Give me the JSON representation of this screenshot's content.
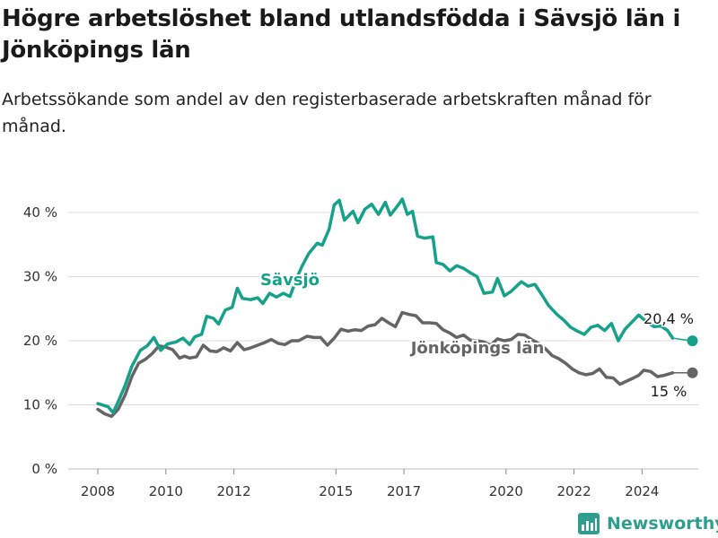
{
  "header": {
    "title": "Högre arbetslöshet bland utlandsfödda i Sävsjö län i Jönköpings län",
    "subtitle": "Arbetssökande som andel av den registerbaserade arbetskraften månad för månad."
  },
  "brand": {
    "name": "Newsworthy",
    "color": "#2f9e8f",
    "icon": "bar-chart-logo-icon"
  },
  "chart_data": {
    "type": "line",
    "title": "Högre arbetslöshet bland utlandsfödda i Sävsjö län i Jönköpings län",
    "subtitle": "Arbetssökande som andel av den registerbaserade arbetskraften månad för månad.",
    "x_unit": "year",
    "xlim": [
      2007.5,
      2026.3
    ],
    "ylim": [
      0,
      45
    ],
    "yticks": [
      0,
      10,
      20,
      30,
      40
    ],
    "ytick_labels": [
      "0 %",
      "10 %",
      "20 %",
      "30 %",
      "40 %"
    ],
    "xticks": [
      2008,
      2010,
      2012,
      2015,
      2017,
      2020,
      2022,
      2024
    ],
    "xtick_labels": [
      "2008",
      "2010",
      "2012",
      "2015",
      "2017",
      "2020",
      "2022",
      "2024"
    ],
    "grid": true,
    "series": [
      {
        "name": "Sävsjö",
        "color": "#16a18b",
        "end_label": "20,4 %",
        "points": [
          [
            2008.0,
            10.2
          ],
          [
            2008.3,
            9.7
          ],
          [
            2008.45,
            8.8
          ],
          [
            2008.6,
            10.5
          ],
          [
            2008.8,
            13.0
          ],
          [
            2009.0,
            16.0
          ],
          [
            2009.25,
            18.5
          ],
          [
            2009.45,
            19.2
          ],
          [
            2009.65,
            20.5
          ],
          [
            2009.85,
            18.5
          ],
          [
            2010.05,
            19.5
          ],
          [
            2010.3,
            19.8
          ],
          [
            2010.5,
            20.4
          ],
          [
            2010.7,
            19.4
          ],
          [
            2010.85,
            20.6
          ],
          [
            2011.05,
            21.0
          ],
          [
            2011.2,
            23.8
          ],
          [
            2011.4,
            23.5
          ],
          [
            2011.55,
            22.6
          ],
          [
            2011.75,
            24.8
          ],
          [
            2011.95,
            25.2
          ],
          [
            2012.1,
            28.2
          ],
          [
            2012.25,
            26.6
          ],
          [
            2012.5,
            26.4
          ],
          [
            2012.7,
            26.7
          ],
          [
            2012.85,
            25.8
          ],
          [
            2013.05,
            27.4
          ],
          [
            2013.25,
            26.8
          ],
          [
            2013.45,
            27.4
          ],
          [
            2013.65,
            26.9
          ],
          [
            2013.85,
            29.8
          ],
          [
            2014.0,
            31.6
          ],
          [
            2014.2,
            33.6
          ],
          [
            2014.45,
            35.2
          ],
          [
            2014.6,
            34.9
          ],
          [
            2014.8,
            37.4
          ],
          [
            2014.95,
            41.2
          ],
          [
            2015.1,
            41.9
          ],
          [
            2015.25,
            38.8
          ],
          [
            2015.5,
            40.2
          ],
          [
            2015.65,
            38.4
          ],
          [
            2015.85,
            40.5
          ],
          [
            2016.05,
            41.3
          ],
          [
            2016.25,
            39.7
          ],
          [
            2016.45,
            41.6
          ],
          [
            2016.6,
            39.6
          ],
          [
            2016.85,
            41.3
          ],
          [
            2016.95,
            42.1
          ],
          [
            2017.1,
            39.7
          ],
          [
            2017.25,
            40.2
          ],
          [
            2017.4,
            36.3
          ],
          [
            2017.6,
            36.0
          ],
          [
            2017.85,
            36.2
          ],
          [
            2017.95,
            32.2
          ],
          [
            2018.15,
            31.9
          ],
          [
            2018.35,
            30.9
          ],
          [
            2018.55,
            31.7
          ],
          [
            2018.75,
            31.3
          ],
          [
            2018.95,
            30.6
          ],
          [
            2019.15,
            30.0
          ],
          [
            2019.35,
            27.4
          ],
          [
            2019.6,
            27.6
          ],
          [
            2019.75,
            29.7
          ],
          [
            2019.95,
            27.0
          ],
          [
            2020.15,
            27.7
          ],
          [
            2020.45,
            29.2
          ],
          [
            2020.65,
            28.5
          ],
          [
            2020.85,
            28.8
          ],
          [
            2021.05,
            27.2
          ],
          [
            2021.25,
            25.5
          ],
          [
            2021.5,
            24.1
          ],
          [
            2021.7,
            23.2
          ],
          [
            2021.9,
            22.1
          ],
          [
            2022.1,
            21.5
          ],
          [
            2022.3,
            21.0
          ],
          [
            2022.5,
            22.1
          ],
          [
            2022.7,
            22.4
          ],
          [
            2022.9,
            21.6
          ],
          [
            2023.1,
            22.7
          ],
          [
            2023.3,
            20.0
          ],
          [
            2023.5,
            21.8
          ],
          [
            2023.7,
            22.9
          ],
          [
            2023.9,
            24.0
          ],
          [
            2024.1,
            23.1
          ],
          [
            2024.35,
            22.2
          ],
          [
            2024.55,
            22.3
          ],
          [
            2024.75,
            21.6
          ],
          [
            2024.9,
            20.4
          ]
        ]
      },
      {
        "name": "Jönköpings län",
        "color": "#656565",
        "end_label": "15 %",
        "points": [
          [
            2008.0,
            9.3
          ],
          [
            2008.2,
            8.6
          ],
          [
            2008.4,
            8.2
          ],
          [
            2008.6,
            9.3
          ],
          [
            2008.8,
            11.5
          ],
          [
            2009.0,
            14.4
          ],
          [
            2009.2,
            16.5
          ],
          [
            2009.4,
            17.1
          ],
          [
            2009.6,
            18.0
          ],
          [
            2009.8,
            19.2
          ],
          [
            2010.0,
            19.0
          ],
          [
            2010.2,
            18.6
          ],
          [
            2010.4,
            17.3
          ],
          [
            2010.55,
            17.6
          ],
          [
            2010.7,
            17.3
          ],
          [
            2010.9,
            17.5
          ],
          [
            2011.1,
            19.3
          ],
          [
            2011.3,
            18.4
          ],
          [
            2011.5,
            18.3
          ],
          [
            2011.7,
            18.9
          ],
          [
            2011.9,
            18.4
          ],
          [
            2012.1,
            19.7
          ],
          [
            2012.3,
            18.6
          ],
          [
            2012.5,
            18.9
          ],
          [
            2012.7,
            19.3
          ],
          [
            2012.9,
            19.7
          ],
          [
            2013.1,
            20.2
          ],
          [
            2013.3,
            19.6
          ],
          [
            2013.5,
            19.4
          ],
          [
            2013.7,
            20.0
          ],
          [
            2013.9,
            20.0
          ],
          [
            2014.15,
            20.7
          ],
          [
            2014.35,
            20.5
          ],
          [
            2014.55,
            20.5
          ],
          [
            2014.75,
            19.3
          ],
          [
            2014.95,
            20.4
          ],
          [
            2015.15,
            21.8
          ],
          [
            2015.35,
            21.5
          ],
          [
            2015.55,
            21.7
          ],
          [
            2015.75,
            21.6
          ],
          [
            2015.95,
            22.3
          ],
          [
            2016.15,
            22.5
          ],
          [
            2016.35,
            23.5
          ],
          [
            2016.55,
            22.8
          ],
          [
            2016.75,
            22.2
          ],
          [
            2016.95,
            24.4
          ],
          [
            2017.15,
            24.1
          ],
          [
            2017.35,
            23.9
          ],
          [
            2017.55,
            22.8
          ],
          [
            2017.75,
            22.8
          ],
          [
            2017.95,
            22.7
          ],
          [
            2018.15,
            21.7
          ],
          [
            2018.35,
            21.2
          ],
          [
            2018.55,
            20.5
          ],
          [
            2018.75,
            20.9
          ],
          [
            2018.95,
            20.1
          ],
          [
            2019.15,
            20.0
          ],
          [
            2019.35,
            19.8
          ],
          [
            2019.55,
            19.3
          ],
          [
            2019.75,
            20.3
          ],
          [
            2019.95,
            20.0
          ],
          [
            2020.15,
            20.2
          ],
          [
            2020.35,
            21.0
          ],
          [
            2020.55,
            20.9
          ],
          [
            2020.75,
            20.2
          ],
          [
            2020.95,
            19.6
          ],
          [
            2021.15,
            18.8
          ],
          [
            2021.35,
            17.7
          ],
          [
            2021.55,
            17.2
          ],
          [
            2021.75,
            16.5
          ],
          [
            2021.95,
            15.6
          ],
          [
            2022.15,
            15.0
          ],
          [
            2022.35,
            14.7
          ],
          [
            2022.55,
            14.9
          ],
          [
            2022.75,
            15.6
          ],
          [
            2022.95,
            14.3
          ],
          [
            2023.15,
            14.2
          ],
          [
            2023.35,
            13.2
          ],
          [
            2023.55,
            13.7
          ],
          [
            2023.75,
            14.2
          ],
          [
            2023.9,
            14.6
          ],
          [
            2024.05,
            15.4
          ],
          [
            2024.25,
            15.2
          ],
          [
            2024.45,
            14.4
          ],
          [
            2024.65,
            14.6
          ],
          [
            2024.9,
            15.0
          ]
        ]
      }
    ]
  }
}
